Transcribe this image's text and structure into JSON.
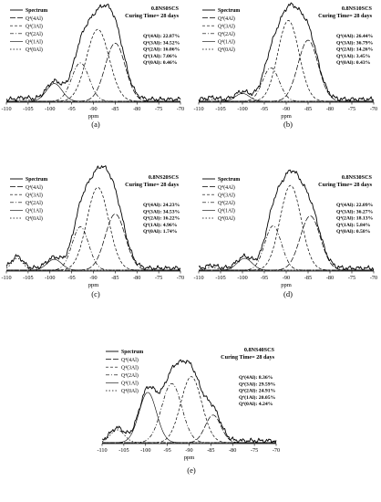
{
  "chart_data": [
    {
      "type": "line",
      "panel_label": "(a)",
      "sample": "0.8NS0SCS",
      "curing": "Curing Time= 28 days",
      "xlabel": "ppm",
      "xlim": [
        -110,
        -70
      ],
      "x_ticks": [
        -110,
        -105,
        -100,
        -95,
        -90,
        -85,
        -80,
        -75,
        -70
      ],
      "legend": [
        "Spectrum",
        "Q⁴(4Al)",
        "Q⁴(3Al)",
        "Q⁴(2Al)",
        "Q⁴(1Al)",
        "Q⁴(0Al)"
      ],
      "annotations": [
        "Q⁴(4Al): 22.87%",
        "Q⁴(3Al): 34.52%",
        "Q⁴(2Al): 16.06%",
        "Q⁴(1Al): 7.06%",
        "Q⁴(0Al): 0.46%"
      ],
      "series": [
        {
          "name": "Q⁴(4Al)",
          "center": -85.0,
          "sigma": 2.3,
          "amp": 0.59
        },
        {
          "name": "Q⁴(3Al)",
          "center": -89.0,
          "sigma": 2.6,
          "amp": 0.73
        },
        {
          "name": "Q⁴(2Al)",
          "center": -93.0,
          "sigma": 2.0,
          "amp": 0.39
        },
        {
          "name": "Q⁴(1Al)",
          "center": -99.0,
          "sigma": 1.8,
          "amp": 0.18
        },
        {
          "name": "Q⁴(0Al)",
          "center": -106.0,
          "sigma": 1.2,
          "amp": 0.02
        }
      ]
    },
    {
      "type": "line",
      "panel_label": "(b)",
      "sample": "0.8NS10SCS",
      "curing": "Curing Time= 28 days",
      "xlabel": "ppm",
      "xlim": [
        -110,
        -70
      ],
      "x_ticks": [
        -110,
        -105,
        -100,
        -95,
        -90,
        -85,
        -80,
        -75,
        -70
      ],
      "legend": [
        "Spectrum",
        "Q⁴(4Al)",
        "Q⁴(3Al)",
        "Q⁴(2Al)",
        "Q⁴(1Al)",
        "Q⁴(0Al)"
      ],
      "annotations": [
        "Q⁴(4Al): 26.44%",
        "Q⁴(3Al): 36.79%",
        "Q⁴(2Al): 14.26%",
        "Q⁴(1Al): 3.45%",
        "Q⁴(0Al): 0.43%"
      ],
      "series": [
        {
          "name": "Q⁴(4Al)",
          "center": -85.0,
          "sigma": 2.3,
          "amp": 0.62
        },
        {
          "name": "Q⁴(3Al)",
          "center": -89.5,
          "sigma": 2.4,
          "amp": 0.82
        },
        {
          "name": "Q⁴(2Al)",
          "center": -93.5,
          "sigma": 1.9,
          "amp": 0.34
        },
        {
          "name": "Q⁴(1Al)",
          "center": -100.0,
          "sigma": 1.6,
          "amp": 0.08
        },
        {
          "name": "Q⁴(0Al)",
          "center": -107.0,
          "sigma": 1.2,
          "amp": 0.02
        }
      ]
    },
    {
      "type": "line",
      "panel_label": "(c)",
      "sample": "0.8NS20SCS",
      "curing": "Curing Time= 28 days",
      "xlabel": "ppm",
      "xlim": [
        -110,
        -70
      ],
      "x_ticks": [
        -110,
        -105,
        -100,
        -95,
        -90,
        -85,
        -80,
        -75,
        -70
      ],
      "legend": [
        "Spectrum",
        "Q⁴(4Al)",
        "Q⁴(3Al)",
        "Q⁴(2Al)",
        "Q⁴(1Al)",
        "Q⁴(0Al)"
      ],
      "annotations": [
        "Q⁴(4Al): 24.23%",
        "Q⁴(3Al): 34.53%",
        "Q⁴(2Al): 16.22%",
        "Q⁴(1Al): 4.96%",
        "Q⁴(0Al): 1.74%"
      ],
      "series": [
        {
          "name": "Q⁴(4Al)",
          "center": -85.0,
          "sigma": 2.3,
          "amp": 0.57
        },
        {
          "name": "Q⁴(3Al)",
          "center": -89.0,
          "sigma": 2.5,
          "amp": 0.84
        },
        {
          "name": "Q⁴(2Al)",
          "center": -93.0,
          "sigma": 1.9,
          "amp": 0.44
        },
        {
          "name": "Q⁴(1Al)",
          "center": -99.0,
          "sigma": 1.7,
          "amp": 0.11
        },
        {
          "name": "Q⁴(0Al)",
          "center": -107.5,
          "sigma": 1.3,
          "amp": 0.12
        }
      ]
    },
    {
      "type": "line",
      "panel_label": "(d)",
      "sample": "0.8NS30SCS",
      "curing": "Curing Time= 28 days",
      "xlabel": "ppm",
      "xlim": [
        -110,
        -70
      ],
      "x_ticks": [
        -110,
        -105,
        -100,
        -95,
        -90,
        -85,
        -80,
        -75,
        -70
      ],
      "legend": [
        "Spectrum",
        "Q⁴(4Al)",
        "Q⁴(3Al)",
        "Q⁴(2Al)",
        "Q⁴(1Al)",
        "Q⁴(0Al)"
      ],
      "annotations": [
        "Q⁴(4Al): 22.09%",
        "Q⁴(3Al): 36.27%",
        "Q⁴(2Al): 18.13%",
        "Q⁴(1Al): 5.84%",
        "Q⁴(0Al): 0.58%"
      ],
      "series": [
        {
          "name": "Q⁴(4Al)",
          "center": -84.5,
          "sigma": 2.3,
          "amp": 0.55
        },
        {
          "name": "Q⁴(3Al)",
          "center": -89.0,
          "sigma": 2.4,
          "amp": 0.86
        },
        {
          "name": "Q⁴(2Al)",
          "center": -93.0,
          "sigma": 1.9,
          "amp": 0.45
        },
        {
          "name": "Q⁴(1Al)",
          "center": -99.5,
          "sigma": 1.7,
          "amp": 0.12
        },
        {
          "name": "Q⁴(0Al)",
          "center": -107.0,
          "sigma": 1.2,
          "amp": 0.03
        }
      ]
    },
    {
      "type": "line",
      "panel_label": "(e)",
      "sample": "0.8NS40SCS",
      "curing": "Curing Time= 28 days",
      "xlabel": "ppm",
      "xlim": [
        -110,
        -70
      ],
      "x_ticks": [
        -110,
        -105,
        -100,
        -95,
        -90,
        -85,
        -80,
        -75,
        -70
      ],
      "legend": [
        "Spectrum",
        "Q⁴(4Al)",
        "Q⁴(3Al)",
        "Q⁴(2Al)",
        "Q⁴(1Al)",
        "Q⁴(0Al)"
      ],
      "annotations": [
        "Q⁴(4Al): 8.36%",
        "Q⁴(3Al): 29.59%",
        "Q⁴(2Al): 24.91%",
        "Q⁴(1Al): 20.05%",
        "Q⁴(0Al): 4.24%"
      ],
      "series": [
        {
          "name": "Q⁴(4Al)",
          "center": -84.5,
          "sigma": 1.8,
          "amp": 0.28
        },
        {
          "name": "Q⁴(3Al)",
          "center": -89.5,
          "sigma": 2.4,
          "amp": 0.67
        },
        {
          "name": "Q⁴(2Al)",
          "center": -94.0,
          "sigma": 2.3,
          "amp": 0.6
        },
        {
          "name": "Q⁴(1Al)",
          "center": -99.5,
          "sigma": 2.0,
          "amp": 0.51
        },
        {
          "name": "Q⁴(0Al)",
          "center": -106.5,
          "sigma": 1.6,
          "amp": 0.13
        }
      ]
    }
  ]
}
